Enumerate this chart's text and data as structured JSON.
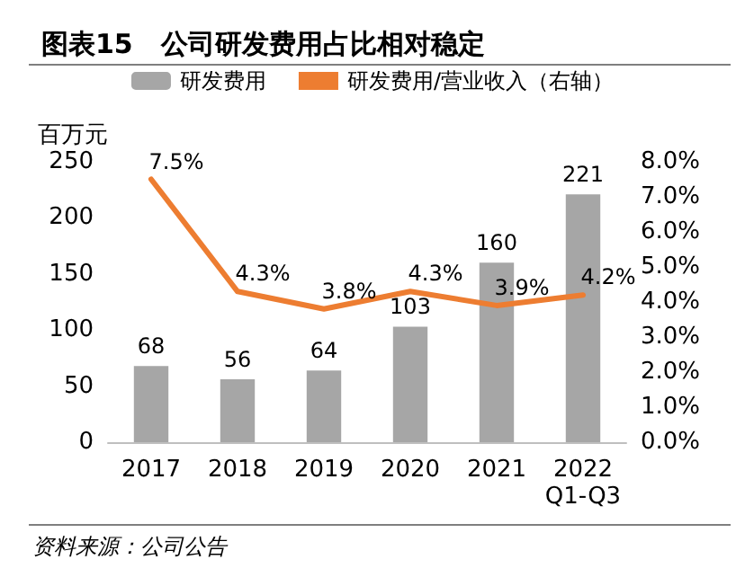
{
  "chart_data": {
    "type": "bar",
    "title": "图表15   公司研发费用占比相对稳定",
    "ylabel": "百万元",
    "categories": [
      "2017",
      "2018",
      "2019",
      "2020",
      "2021",
      "2022\nQ1-Q3"
    ],
    "series": [
      {
        "name": "研发费用",
        "color": "#a6a6a6",
        "values": [
          68,
          56,
          64,
          103,
          160,
          221
        ],
        "value_labels": [
          "68",
          "56",
          "64",
          "103",
          "160",
          "221"
        ]
      },
      {
        "name": "研发费用/营业收入（右轴）",
        "type": "line",
        "axis": "y2",
        "color": "#ed7d31",
        "values": [
          7.5,
          4.3,
          3.8,
          4.3,
          3.9,
          4.2
        ],
        "value_labels": [
          "7.5%",
          "4.3%",
          "3.8%",
          "4.3%",
          "3.9%",
          "4.2%"
        ]
      }
    ],
    "ylim": [
      0,
      250
    ],
    "yticks": [
      0,
      50,
      100,
      150,
      200,
      250
    ],
    "y2lim": [
      0,
      8
    ],
    "y2ticks": [
      {
        "value": 0,
        "label": "0.0%"
      },
      {
        "value": 1,
        "label": "1.0%"
      },
      {
        "value": 2,
        "label": "2.0%"
      },
      {
        "value": 3,
        "label": "3.0%"
      },
      {
        "value": 4,
        "label": "4.0%"
      },
      {
        "value": 5,
        "label": "5.0%"
      },
      {
        "value": 6,
        "label": "6.0%"
      },
      {
        "value": 7,
        "label": "7.0%"
      },
      {
        "value": 8,
        "label": "8.0%"
      }
    ],
    "legend": "top",
    "marker": "none",
    "line_style": "solid",
    "annotations": [
      "资料来源：公司公告"
    ]
  }
}
